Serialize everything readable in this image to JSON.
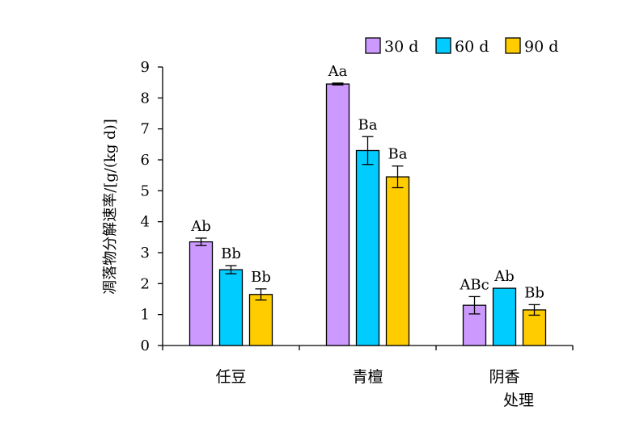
{
  "chart_data": {
    "type": "bar",
    "categories": [
      "任豆",
      "青檀",
      "阴香"
    ],
    "xlabel": "处理",
    "ylabel": "凋落物分解速率/[g/(kg d)]",
    "ylim": [
      0,
      9
    ],
    "yticks": [
      "0",
      "1",
      "2",
      "3",
      "4",
      "5",
      "6",
      "7",
      "8",
      "9"
    ],
    "legend_position": "top-right",
    "series": [
      {
        "name": "30 d",
        "color": "#CC99FF",
        "values": [
          3.35,
          8.45,
          1.3
        ],
        "errors": [
          0.12,
          0.03,
          0.28
        ],
        "labels": [
          "Ab",
          "Aa",
          "ABc"
        ]
      },
      {
        "name": "60 d",
        "color": "#00CCFF",
        "values": [
          2.45,
          6.3,
          1.85
        ],
        "errors": [
          0.13,
          0.45,
          0
        ],
        "labels": [
          "Bb",
          "Ba",
          "Ab"
        ]
      },
      {
        "name": "90 d",
        "color": "#FFCC00",
        "values": [
          1.65,
          5.45,
          1.15
        ],
        "errors": [
          0.18,
          0.35,
          0.17
        ],
        "labels": [
          "Bb",
          "Ba",
          "Bb"
        ]
      }
    ]
  }
}
